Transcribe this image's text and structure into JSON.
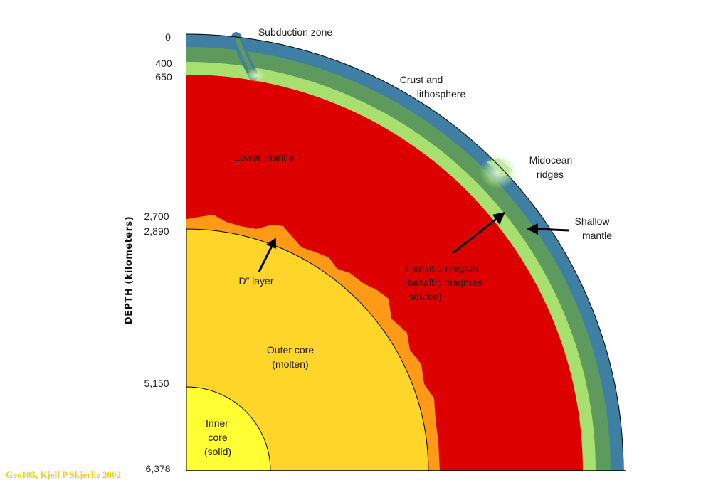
{
  "colors": {
    "crust": "#3f7fa3",
    "upper_mantle": "#5e9a5e",
    "transition": "#a8e070",
    "lower_mantle": "#dd0000",
    "d_double_prime": "#ff9a18",
    "outer_core": "#ffd52a",
    "inner_core": "#ffff33",
    "credit_text": "#e8d020"
  },
  "axis": {
    "title": "DEPTH (kilometers)",
    "ticks": [
      "0",
      "400",
      "650",
      "2,700",
      "2,890",
      "5,150",
      "6,378"
    ]
  },
  "labels": {
    "subduction": "Subduction zone",
    "crust_line1": "Crust and",
    "crust_line2": "lithosphere",
    "lower_mantle": "Lower mantle",
    "midocean_line1": "Midocean",
    "midocean_line2": "ridges",
    "shallow_line1": "Shallow",
    "shallow_line2": "mantle",
    "d_layer": "D” layer",
    "transition_line1": "Transition region",
    "transition_line2": "(basaltic magmas",
    "transition_line3": "source)",
    "outer_core_line1": "Outer core",
    "outer_core_line2": "(molten)",
    "inner_core_line1": "Inner",
    "inner_core_line2": "core",
    "inner_core_line3": "(solid)"
  },
  "credit": "Geo105, Kjell P Skjerlie 2002"
}
